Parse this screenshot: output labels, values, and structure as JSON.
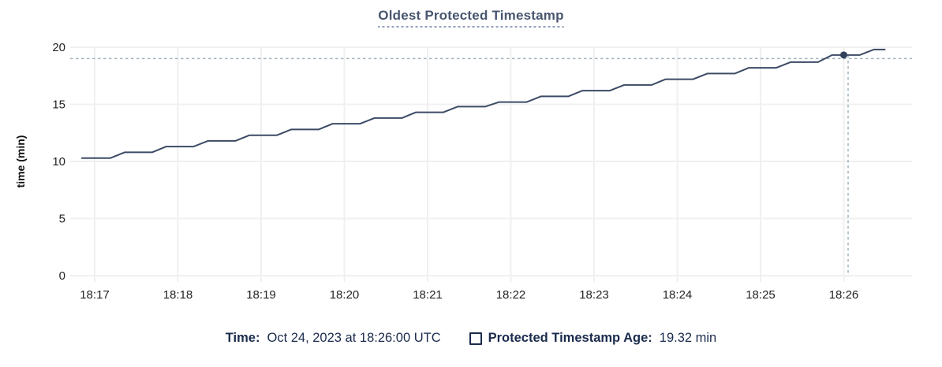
{
  "chart_data": {
    "type": "line",
    "title": "Oldest Protected Timestamp",
    "ylabel": "time (min)",
    "ylim": [
      0,
      20
    ],
    "yticks": [
      0,
      5,
      10,
      15,
      20
    ],
    "x_tick_labels": [
      "18:17",
      "18:18",
      "18:19",
      "18:20",
      "18:21",
      "18:22",
      "18:23",
      "18:24",
      "18:25",
      "18:26"
    ],
    "grid": true,
    "legend_position": "bottom",
    "series": [
      {
        "name": "Protected Timestamp Age",
        "points_minutes_after_1817_and_value_min": [
          [
            -0.16,
            10.3
          ],
          [
            0.19,
            10.3
          ],
          [
            0.36,
            10.8
          ],
          [
            0.69,
            10.8
          ],
          [
            0.86,
            11.3
          ],
          [
            1.19,
            11.3
          ],
          [
            1.36,
            11.8
          ],
          [
            1.69,
            11.8
          ],
          [
            1.86,
            12.3
          ],
          [
            2.19,
            12.3
          ],
          [
            2.36,
            12.8
          ],
          [
            2.69,
            12.8
          ],
          [
            2.86,
            13.3
          ],
          [
            3.19,
            13.3
          ],
          [
            3.36,
            13.8
          ],
          [
            3.69,
            13.8
          ],
          [
            3.86,
            14.3
          ],
          [
            4.19,
            14.3
          ],
          [
            4.36,
            14.8
          ],
          [
            4.69,
            14.8
          ],
          [
            4.86,
            15.2
          ],
          [
            5.19,
            15.2
          ],
          [
            5.36,
            15.7
          ],
          [
            5.69,
            15.7
          ],
          [
            5.86,
            16.2
          ],
          [
            6.19,
            16.2
          ],
          [
            6.36,
            16.7
          ],
          [
            6.69,
            16.7
          ],
          [
            6.86,
            17.2
          ],
          [
            7.19,
            17.2
          ],
          [
            7.36,
            17.7
          ],
          [
            7.69,
            17.7
          ],
          [
            7.86,
            18.2
          ],
          [
            8.19,
            18.2
          ],
          [
            8.36,
            18.7
          ],
          [
            8.69,
            18.7
          ],
          [
            8.86,
            19.32
          ],
          [
            9.19,
            19.32
          ],
          [
            9.36,
            19.8
          ],
          [
            9.5,
            19.8
          ]
        ]
      }
    ],
    "marker": {
      "t": 9.0,
      "value": 19.32
    },
    "crosshair": {
      "t": 9.0,
      "value": 19.32
    },
    "colors": {
      "line": "#3c4b66",
      "marker": "#31415e",
      "grid": "#f0f0f0",
      "crosshair": "#9fb3bd",
      "tick_text": "#242424",
      "axis_title_text": "#111111",
      "title": "#48566f",
      "legend_text": "#1b2b4d"
    }
  },
  "tooltip": {
    "time_label": "Time:",
    "time_value": "Oct 24, 2023 at 18:26:00 UTC",
    "age_label": "Protected Timestamp Age:",
    "age_value": "19.32 min"
  }
}
